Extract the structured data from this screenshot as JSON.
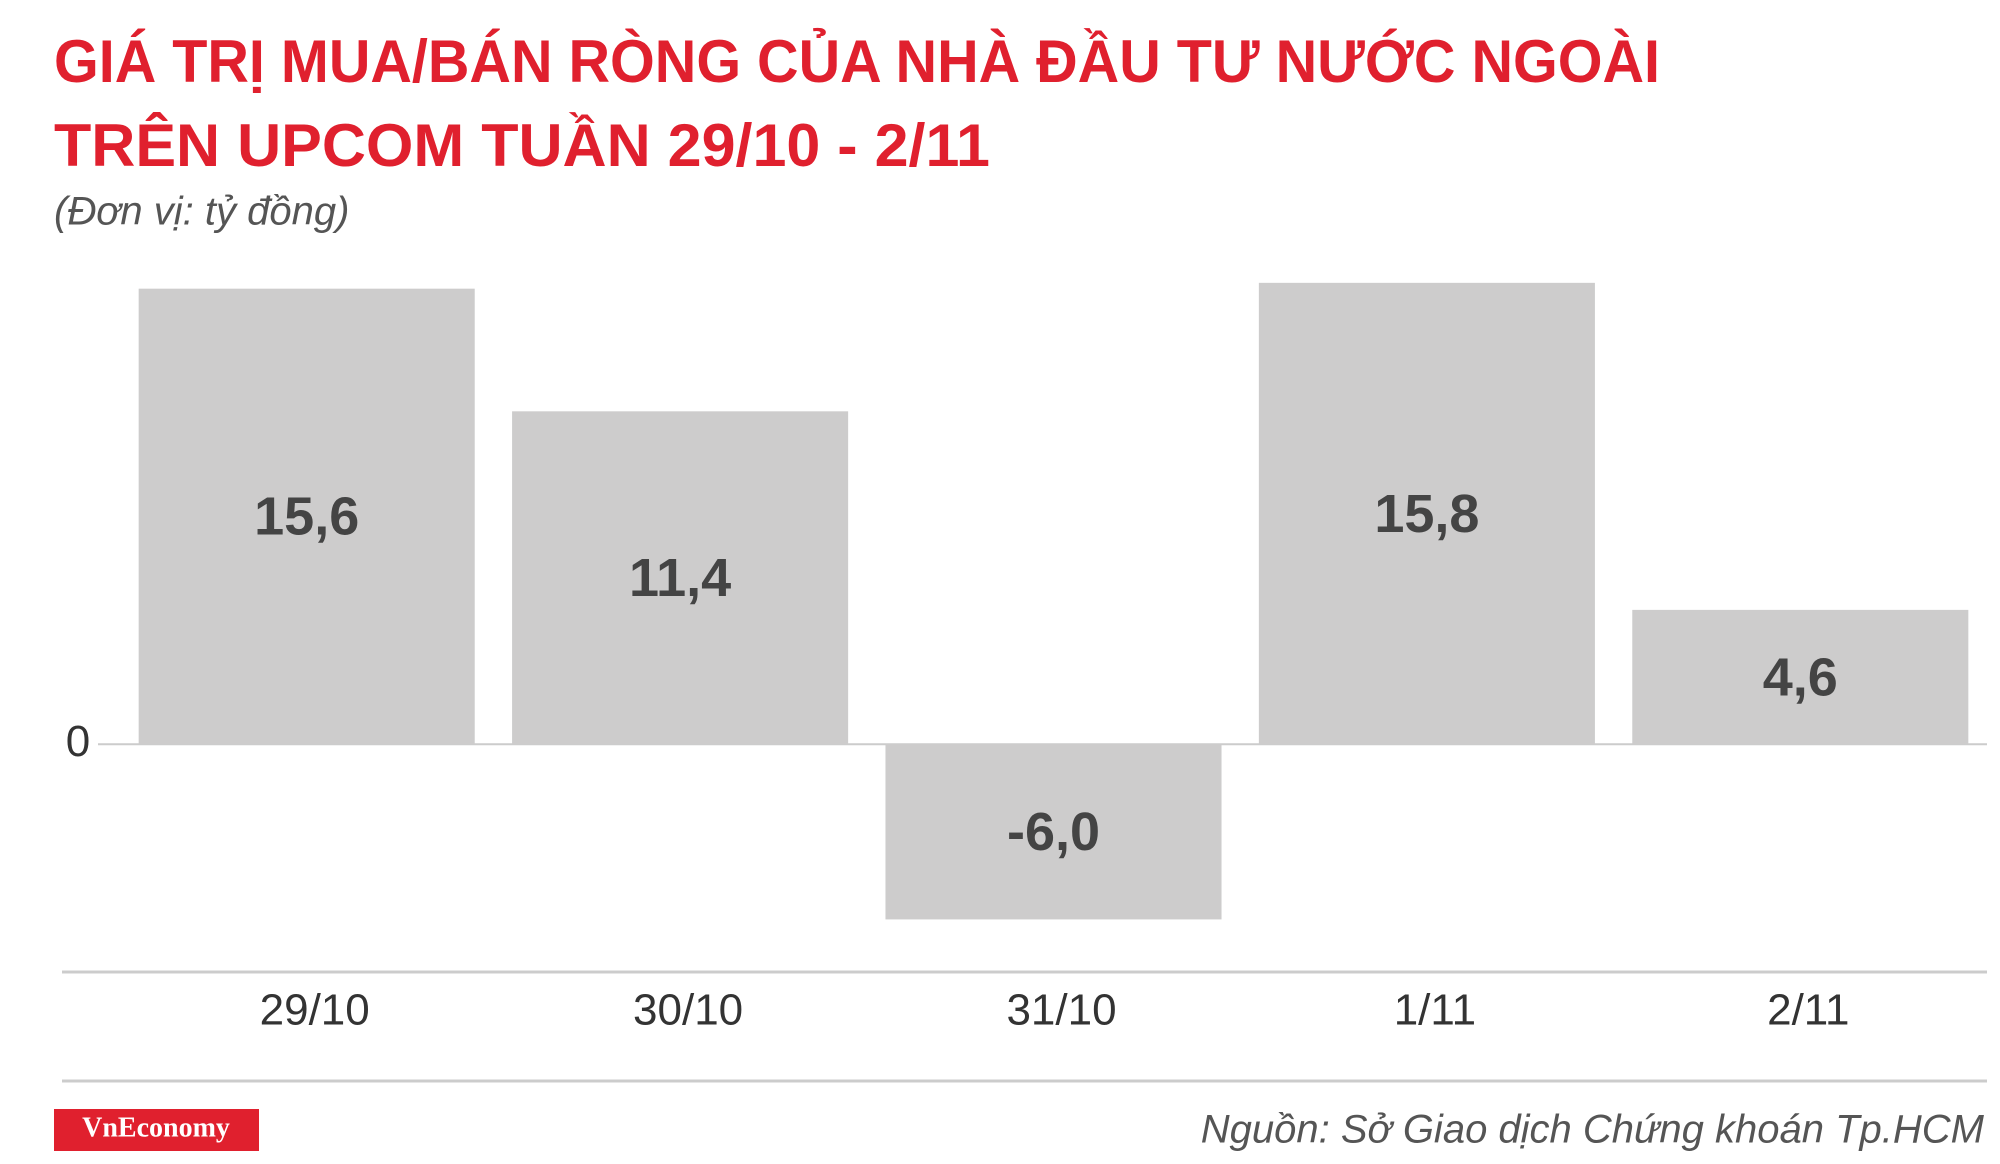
{
  "chart_data": {
    "type": "bar",
    "title": [
      "GIÁ TRỊ MUA/BÁN RÒNG CỦA NHÀ ĐẦU TƯ NƯỚC NGOÀI",
      "TRÊN UPCOM TUẦN 29/10 - 2/11"
    ],
    "subtitle": "(Đơn vị: tỷ đồng)",
    "categories": [
      "29/10",
      "30/10",
      "31/10",
      "1/11",
      "2/11"
    ],
    "values": [
      15.6,
      11.4,
      -6.0,
      15.8,
      4.6
    ],
    "value_labels": [
      "15,6",
      "11,4",
      "-6,0",
      "15,8",
      "4,6"
    ],
    "color": "#cdcccc",
    "ylim": [
      -6.5,
      16
    ],
    "yticks": [
      0
    ],
    "logo": "VnEconomy",
    "source": "Nguồn: Sở Giao dịch Chứng khoán Tp.HCM"
  }
}
